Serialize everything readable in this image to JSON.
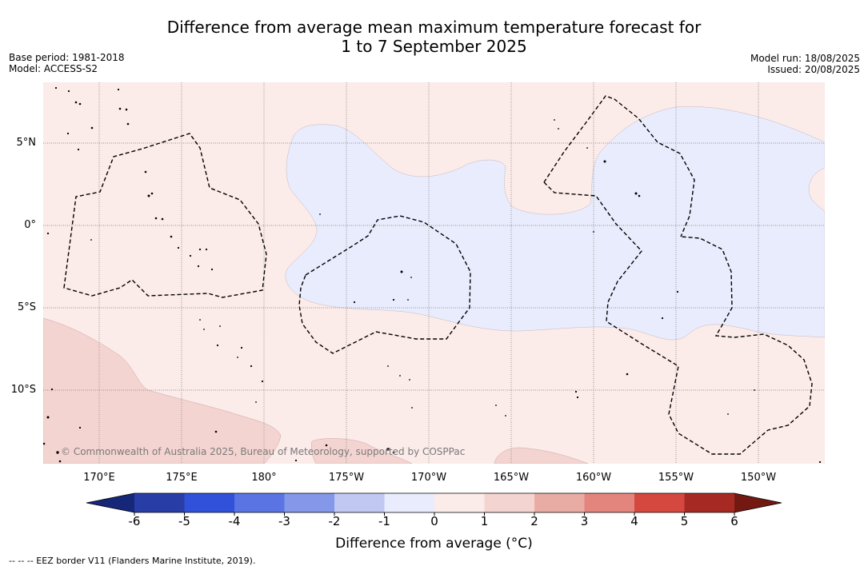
{
  "title": {
    "line1": "Difference from average mean maximum temperature forecast for",
    "line2": "1 to 7 September 2025"
  },
  "info_left": {
    "base_period": "Base period: 1981-2018",
    "model": "Model: ACCESS-S2"
  },
  "info_right": {
    "model_run": "Model run: 18/08/2025",
    "issued": "Issued: 20/08/2025"
  },
  "map": {
    "latitude_labels": [
      "5°N",
      "0°",
      "5°S",
      "10°S"
    ],
    "longitude_labels": [
      "170°E",
      "175°E",
      "180°",
      "175°W",
      "170°W",
      "165°W",
      "160°W",
      "155°W",
      "150°W"
    ],
    "copyright": "© Commonwealth of Australia 2025, Bureau of Meteorology, supported by COSPPac",
    "colors": {
      "ocean_warm_0_1": "#fbebe9",
      "cool_-1_0": "#e8ecfc",
      "warm_1_2": "#f4d4d1",
      "grid": "#777777",
      "eez": "#000000"
    }
  },
  "colorbar": {
    "ticks": [
      "-6",
      "-5",
      "-4",
      "-3",
      "-2",
      "-1",
      "0",
      "1",
      "2",
      "3",
      "4",
      "5",
      "6"
    ],
    "label": "Difference from average (°C)",
    "colors": [
      "#16277a",
      "#283da6",
      "#3251db",
      "#5a75e3",
      "#8497e9",
      "#c1c9f3",
      "#e8ecfc",
      "#fbebe9",
      "#f4d4d1",
      "#e8aca5",
      "#e3857c",
      "#d44840",
      "#a72923",
      "#741912"
    ]
  },
  "footnote": "--  --  -- EEZ border V11 (Flanders Marine Institute, 2019)."
}
